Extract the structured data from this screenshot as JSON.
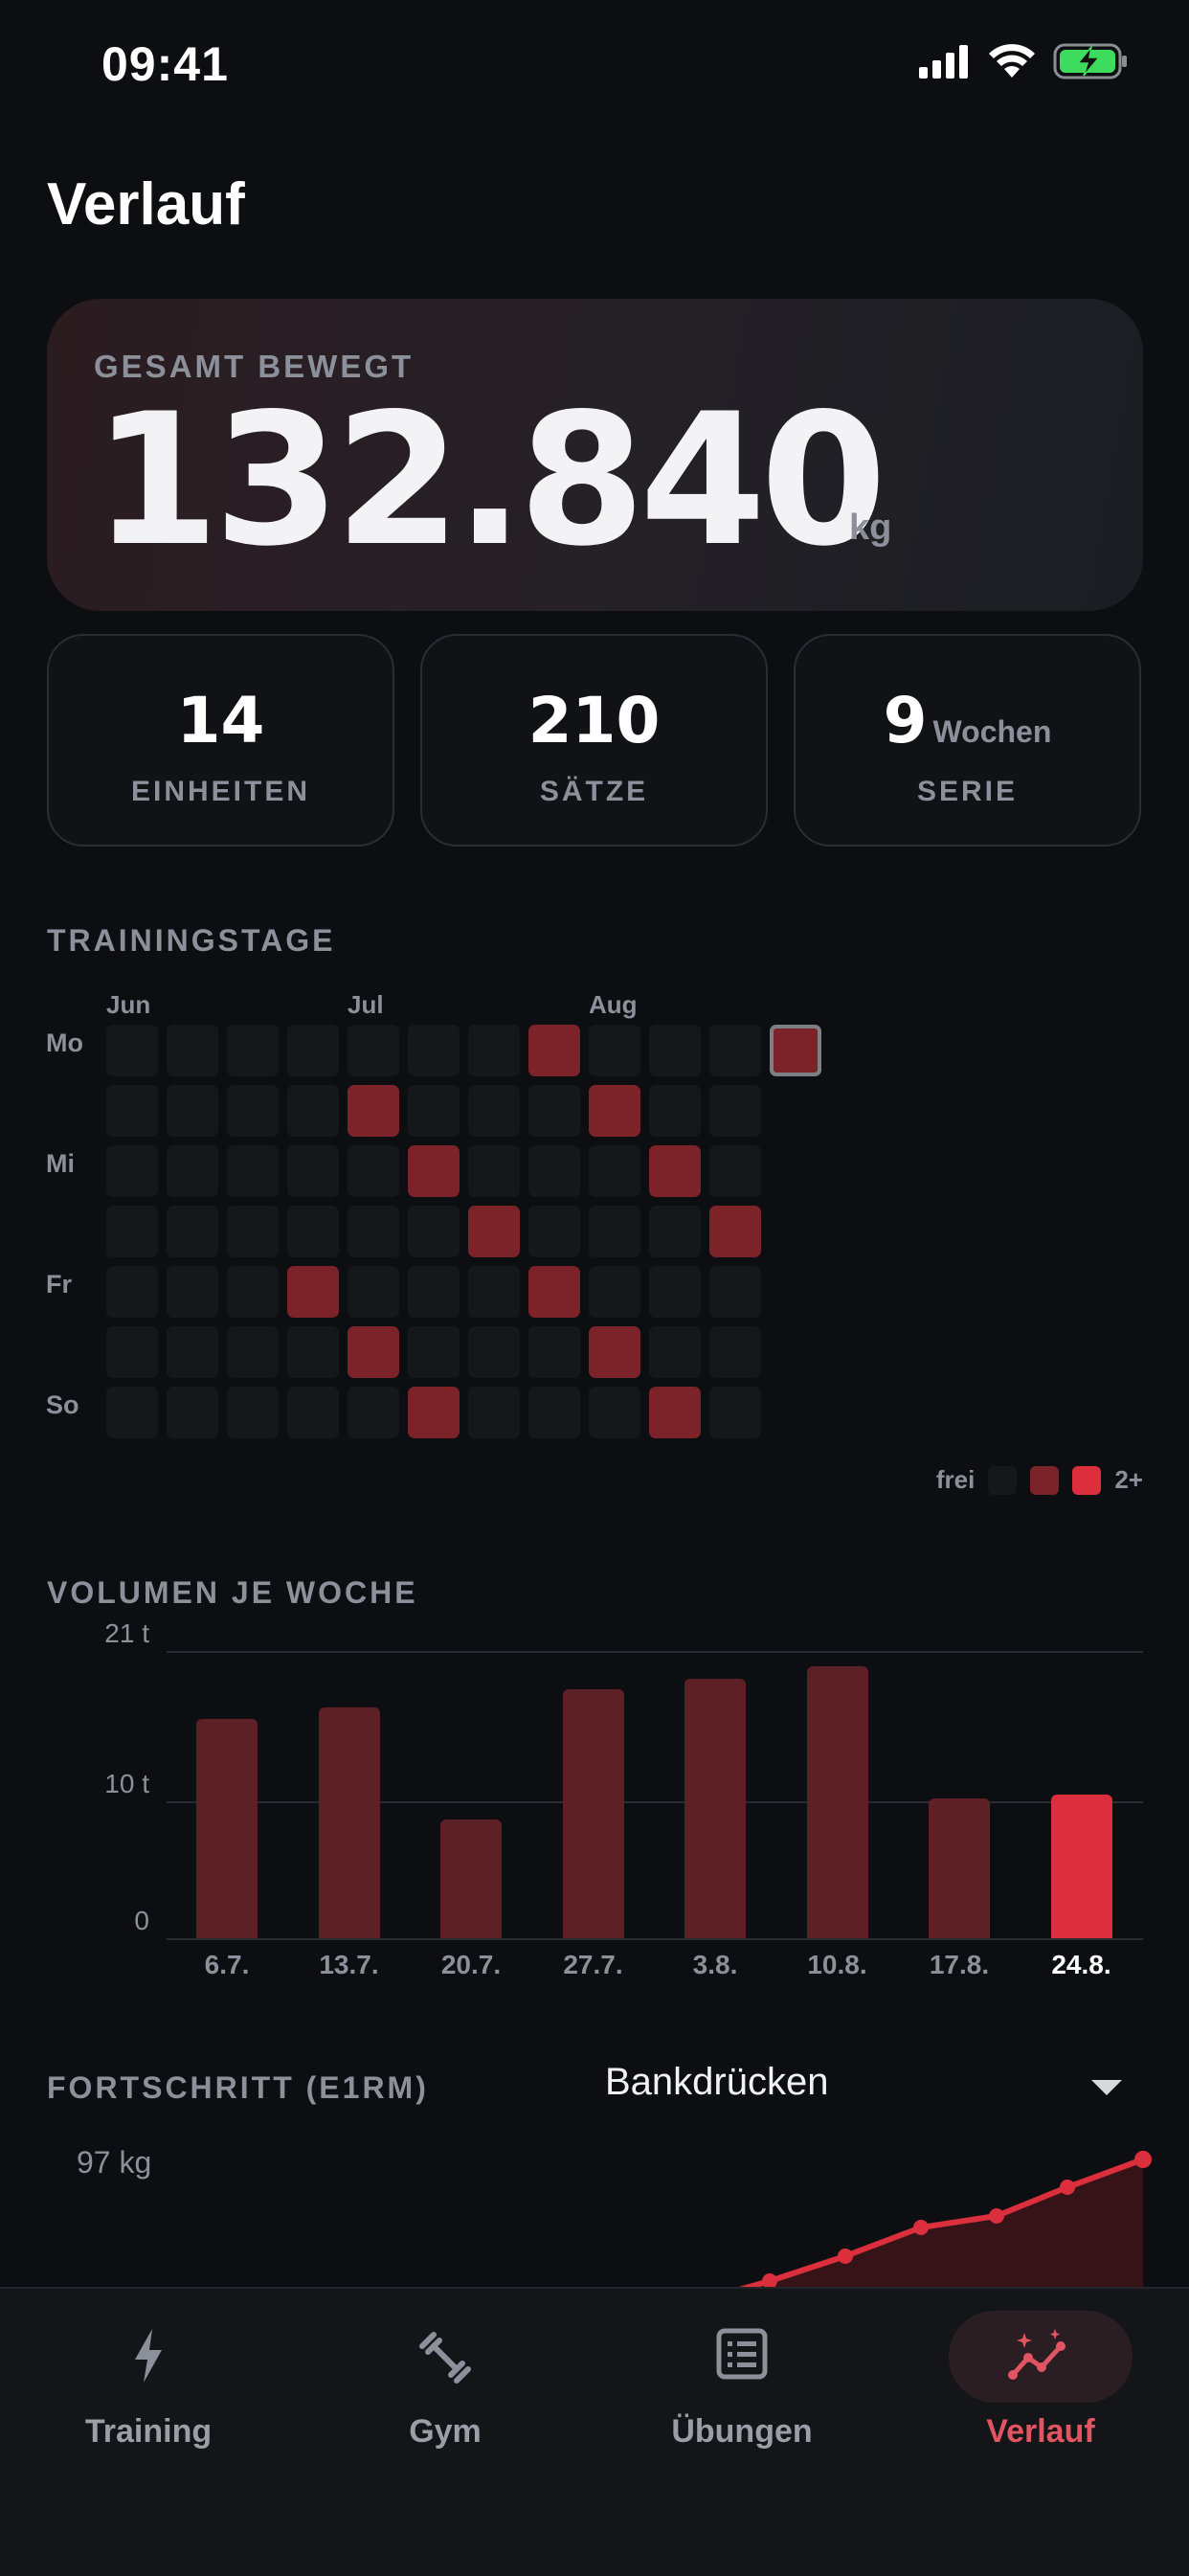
{
  "status_bar": {
    "time": "09:41"
  },
  "page_title": "Verlauf",
  "hero": {
    "label": "GESAMT BEWEGT",
    "value": "132.840",
    "unit": "kg"
  },
  "stats": [
    {
      "value": "14",
      "suffix": "",
      "label": "EINHEITEN"
    },
    {
      "value": "210",
      "suffix": "",
      "label": "SÄTZE"
    },
    {
      "value": "9",
      "suffix": "Wochen",
      "label": "SERIE"
    }
  ],
  "training_days": {
    "title": "TRAININGSTAGE",
    "months": [
      "Jun",
      "Jul",
      "Aug"
    ],
    "day_labels": [
      "Mo",
      "Mi",
      "Fr",
      "So"
    ],
    "legend": {
      "free": "frei",
      "max": "2+"
    },
    "active_cells": [
      {
        "week": 7,
        "day": 0,
        "level": 1
      },
      {
        "week": 4,
        "day": 1,
        "level": 1
      },
      {
        "week": 8,
        "day": 1,
        "level": 1
      },
      {
        "week": 5,
        "day": 2,
        "level": 1
      },
      {
        "week": 9,
        "day": 2,
        "level": 1
      },
      {
        "week": 6,
        "day": 3,
        "level": 1
      },
      {
        "week": 10,
        "day": 3,
        "level": 1
      },
      {
        "week": 3,
        "day": 4,
        "level": 1
      },
      {
        "week": 7,
        "day": 4,
        "level": 1
      },
      {
        "week": 4,
        "day": 5,
        "level": 1
      },
      {
        "week": 8,
        "day": 5,
        "level": 1
      },
      {
        "week": 5,
        "day": 6,
        "level": 1
      },
      {
        "week": 9,
        "day": 6,
        "level": 1
      },
      {
        "week": 11,
        "day": 0,
        "level": 1,
        "today": true
      }
    ],
    "weeks": 11
  },
  "weekly_volume": {
    "title": "VOLUMEN JE WOCHE",
    "chart_data": {
      "type": "bar",
      "categories": [
        "6.7.",
        "13.7.",
        "20.7.",
        "27.7.",
        "3.8.",
        "10.8.",
        "17.8.",
        "24.8."
      ],
      "values": [
        16.0,
        16.9,
        8.7,
        18.2,
        19.0,
        19.9,
        10.2,
        10.5
      ],
      "unit": "t",
      "ylim": [
        0,
        21
      ],
      "yticks": [
        "21 t",
        "10 t",
        "0"
      ],
      "highlight_index": 7
    }
  },
  "progress": {
    "title": "FORTSCHRITT (E1RM)",
    "exercise": "Bankdrücken",
    "y_label": "97 kg"
  },
  "tabs": [
    {
      "label": "Training",
      "icon": "bolt-icon"
    },
    {
      "label": "Gym",
      "icon": "dumbbell-icon"
    },
    {
      "label": "Übungen",
      "icon": "list-icon"
    },
    {
      "label": "Verlauf",
      "icon": "chart-trend-icon",
      "active": true
    }
  ],
  "colors": {
    "accent": "#dc2f3d",
    "accent_dim": "#7c2229",
    "background": "#0d0e11"
  }
}
